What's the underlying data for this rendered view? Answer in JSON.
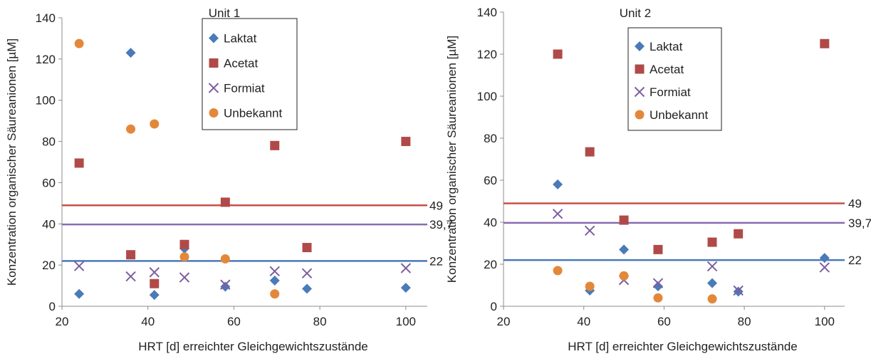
{
  "chart_data": [
    {
      "type": "scatter",
      "title": "Unit 1",
      "xlabel": "HRT [d] erreichter Gleichgewichtszustände",
      "ylabel": "Konzentration organischer Säureanionen [µM]",
      "xlim": [
        20,
        105
      ],
      "ylim": [
        0,
        140
      ],
      "xticks": [
        20,
        40,
        60,
        80,
        100
      ],
      "yticks": [
        0,
        20,
        40,
        60,
        80,
        100,
        120,
        140
      ],
      "grid": false,
      "legend_position": "top-center",
      "series": [
        {
          "name": "Laktat",
          "marker": "diamond",
          "color": "#4a7ab8",
          "points": [
            [
              24,
              6
            ],
            [
              36,
              123
            ],
            [
              41.5,
              5.5
            ],
            [
              48.5,
              28
            ],
            [
              58,
              9.5
            ],
            [
              69.5,
              12.5
            ],
            [
              77,
              8.5
            ],
            [
              100,
              9
            ]
          ]
        },
        {
          "name": "Acetat",
          "marker": "square",
          "color": "#b04a48",
          "points": [
            [
              24,
              69.5
            ],
            [
              36,
              25
            ],
            [
              41.5,
              11
            ],
            [
              48.5,
              30
            ],
            [
              58,
              50.5
            ],
            [
              69.5,
              78
            ],
            [
              77,
              28.5
            ],
            [
              100,
              80
            ]
          ]
        },
        {
          "name": "Formiat",
          "marker": "x",
          "color": "#7d5fa0",
          "points": [
            [
              24,
              19.5
            ],
            [
              36,
              14.5
            ],
            [
              41.5,
              16.5
            ],
            [
              48.5,
              14
            ],
            [
              58,
              10.5
            ],
            [
              69.5,
              17
            ],
            [
              77,
              16
            ],
            [
              100,
              18.5
            ]
          ]
        },
        {
          "name": "Unbekannt",
          "marker": "circle",
          "color": "#e3883a",
          "points": [
            [
              24,
              127.5
            ],
            [
              36,
              86
            ],
            [
              41.5,
              88.5
            ],
            [
              48.5,
              24
            ],
            [
              58,
              23
            ],
            [
              69.5,
              6
            ]
          ]
        }
      ],
      "reference_lines": [
        {
          "value": 49,
          "label": "49",
          "color": "#c9504a"
        },
        {
          "value": 39.7,
          "label": "39,7",
          "color": "#8a6bb2"
        },
        {
          "value": 22,
          "label": "22",
          "color": "#4a7ab8"
        }
      ]
    },
    {
      "type": "scatter",
      "title": "Unit 2",
      "xlabel": "HRT [d] erreichter Gleichgewichtszustände",
      "ylabel": "Konzentration organischer Säureanionen [µM]",
      "xlim": [
        20,
        105
      ],
      "ylim": [
        0,
        140
      ],
      "xticks": [
        20,
        40,
        60,
        80,
        100
      ],
      "yticks": [
        0,
        20,
        40,
        60,
        80,
        100,
        120,
        140
      ],
      "grid": false,
      "legend_position": "top-center",
      "series": [
        {
          "name": "Laktat",
          "marker": "diamond",
          "color": "#4a7ab8",
          "points": [
            [
              33.5,
              58
            ],
            [
              41.5,
              7.5
            ],
            [
              50,
              27
            ],
            [
              58.5,
              9.5
            ],
            [
              72,
              11
            ],
            [
              78.5,
              7
            ],
            [
              100,
              23
            ]
          ]
        },
        {
          "name": "Acetat",
          "marker": "square",
          "color": "#b04a48",
          "points": [
            [
              33.5,
              120
            ],
            [
              41.5,
              73.5
            ],
            [
              50,
              41
            ],
            [
              58.5,
              27
            ],
            [
              72,
              30.5
            ],
            [
              78.5,
              34.5
            ],
            [
              100,
              125
            ]
          ]
        },
        {
          "name": "Formiat",
          "marker": "x",
          "color": "#7d5fa0",
          "points": [
            [
              33.5,
              44
            ],
            [
              41.5,
              36
            ],
            [
              50,
              12.5
            ],
            [
              58.5,
              11
            ],
            [
              72,
              19
            ],
            [
              78.5,
              7.5
            ],
            [
              100,
              18.5
            ]
          ]
        },
        {
          "name": "Unbekannt",
          "marker": "circle",
          "color": "#e3883a",
          "points": [
            [
              33.5,
              17
            ],
            [
              41.5,
              9.5
            ],
            [
              50,
              14.5
            ],
            [
              58.5,
              4
            ],
            [
              72,
              3.5
            ]
          ]
        }
      ],
      "reference_lines": [
        {
          "value": 49,
          "label": "49",
          "color": "#c9504a"
        },
        {
          "value": 39.7,
          "label": "39,7",
          "color": "#8a6bb2"
        },
        {
          "value": 22,
          "label": "22",
          "color": "#4a7ab8"
        }
      ]
    }
  ]
}
